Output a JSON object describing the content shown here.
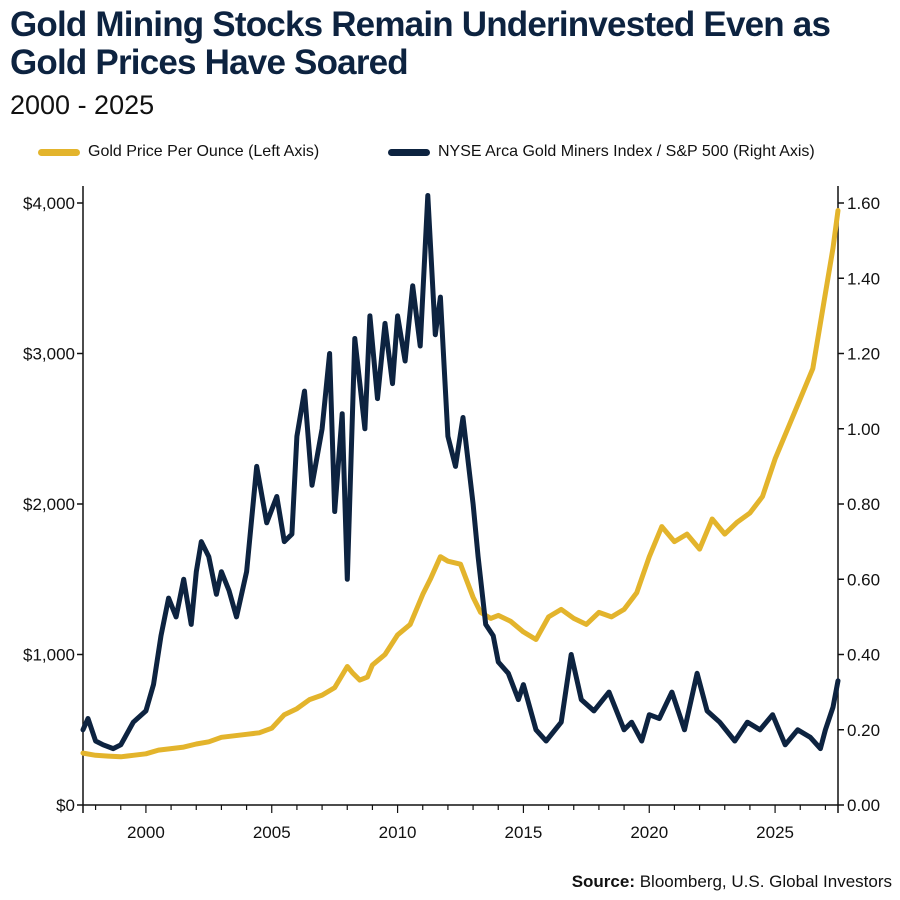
{
  "chart_data": {
    "type": "line",
    "title": "Gold Mining Stocks Remain Underinvested Even as Gold Prices Have Soared",
    "subtitle": "2000 - 2025",
    "source_label": "Source:",
    "source_text": "Bloomberg, U.S. Global Investors",
    "x_ticks": [
      2000,
      2005,
      2010,
      2015,
      2020,
      2025
    ],
    "x_range": [
      1997.5,
      2027.5
    ],
    "left_axis": {
      "ylim": [
        0,
        4000
      ],
      "ticks": [
        0,
        1000,
        2000,
        3000,
        4000
      ],
      "tick_labels": [
        "$0",
        "$1,000",
        "$2,000",
        "$3,000",
        "$4,000"
      ]
    },
    "right_axis": {
      "ylim": [
        0,
        1.6
      ],
      "ticks": [
        0,
        0.2,
        0.4,
        0.6,
        0.8,
        1.0,
        1.2,
        1.4,
        1.6
      ],
      "tick_labels": [
        "0.00",
        "0.20",
        "0.40",
        "0.60",
        "0.80",
        "1.00",
        "1.20",
        "1.40",
        "1.60"
      ]
    },
    "series": [
      {
        "name": "Gold Price Per Ounce (Left Axis)",
        "axis": "left",
        "color": "#e3b42c",
        "x": [
          1997.5,
          1998,
          1998.5,
          1999,
          1999.5,
          2000,
          2000.5,
          2001,
          2001.5,
          2002,
          2002.5,
          2003,
          2003.5,
          2004,
          2004.5,
          2005,
          2005.5,
          2006,
          2006.5,
          2007,
          2007.5,
          2008,
          2008.2,
          2008.5,
          2008.8,
          2009,
          2009.5,
          2010,
          2010.5,
          2011,
          2011.3,
          2011.7,
          2012,
          2012.5,
          2013,
          2013.3,
          2013.7,
          2014,
          2014.5,
          2015,
          2015.5,
          2016,
          2016.5,
          2017,
          2017.5,
          2018,
          2018.5,
          2019,
          2019.5,
          2020,
          2020.5,
          2021,
          2021.5,
          2022,
          2022.5,
          2023,
          2023.5,
          2024,
          2024.5,
          2025,
          2025.5,
          2026,
          2026.5,
          2027,
          2027.3,
          2027.5
        ],
        "values": [
          345,
          330,
          325,
          320,
          330,
          340,
          365,
          375,
          385,
          405,
          420,
          450,
          460,
          470,
          480,
          510,
          600,
          640,
          700,
          730,
          780,
          920,
          880,
          830,
          850,
          930,
          1000,
          1130,
          1200,
          1400,
          1500,
          1650,
          1620,
          1600,
          1380,
          1280,
          1240,
          1260,
          1220,
          1150,
          1100,
          1250,
          1300,
          1240,
          1200,
          1280,
          1250,
          1300,
          1410,
          1650,
          1850,
          1750,
          1800,
          1700,
          1900,
          1800,
          1880,
          1940,
          2050,
          2300,
          2500,
          2700,
          2900,
          3400,
          3700,
          3950
        ]
      },
      {
        "name": "NYSE Arca Gold Miners Index / S&P 500 (Right Axis)",
        "axis": "right",
        "color": "#0d2340",
        "x": [
          1997.5,
          1997.7,
          1998,
          1998.3,
          1998.7,
          1999,
          1999.5,
          2000,
          2000.3,
          2000.6,
          2000.9,
          2001.2,
          2001.5,
          2001.8,
          2002,
          2002.2,
          2002.5,
          2002.8,
          2003,
          2003.3,
          2003.6,
          2004,
          2004.4,
          2004.8,
          2005.2,
          2005.5,
          2005.8,
          2006,
          2006.3,
          2006.6,
          2007,
          2007.3,
          2007.5,
          2007.8,
          2008,
          2008.3,
          2008.7,
          2008.9,
          2009.2,
          2009.5,
          2009.8,
          2010,
          2010.3,
          2010.6,
          2010.9,
          2011.2,
          2011.5,
          2011.7,
          2012,
          2012.3,
          2012.6,
          2013,
          2013.2,
          2013.5,
          2013.8,
          2014,
          2014.4,
          2014.8,
          2015,
          2015.5,
          2015.9,
          2016.5,
          2016.9,
          2017.3,
          2017.8,
          2018.4,
          2019,
          2019.3,
          2019.7,
          2020,
          2020.4,
          2020.9,
          2021.4,
          2021.9,
          2022.3,
          2022.8,
          2023.4,
          2023.9,
          2024.4,
          2024.9,
          2025.4,
          2025.9,
          2026.4,
          2026.8,
          2027,
          2027.3,
          2027.5
        ],
        "values": [
          0.2,
          0.23,
          0.17,
          0.16,
          0.15,
          0.16,
          0.22,
          0.25,
          0.32,
          0.45,
          0.55,
          0.5,
          0.6,
          0.48,
          0.62,
          0.7,
          0.66,
          0.56,
          0.62,
          0.57,
          0.5,
          0.62,
          0.9,
          0.75,
          0.82,
          0.7,
          0.72,
          0.98,
          1.1,
          0.85,
          1.0,
          1.2,
          0.78,
          1.04,
          0.6,
          1.24,
          1.0,
          1.3,
          1.08,
          1.28,
          1.12,
          1.3,
          1.18,
          1.38,
          1.22,
          1.62,
          1.25,
          1.35,
          0.98,
          0.9,
          1.03,
          0.8,
          0.66,
          0.48,
          0.45,
          0.38,
          0.35,
          0.28,
          0.32,
          0.2,
          0.17,
          0.22,
          0.4,
          0.28,
          0.25,
          0.3,
          0.2,
          0.22,
          0.17,
          0.24,
          0.23,
          0.3,
          0.2,
          0.35,
          0.25,
          0.22,
          0.17,
          0.22,
          0.2,
          0.24,
          0.16,
          0.2,
          0.18,
          0.15,
          0.2,
          0.26,
          0.33
        ]
      }
    ]
  }
}
